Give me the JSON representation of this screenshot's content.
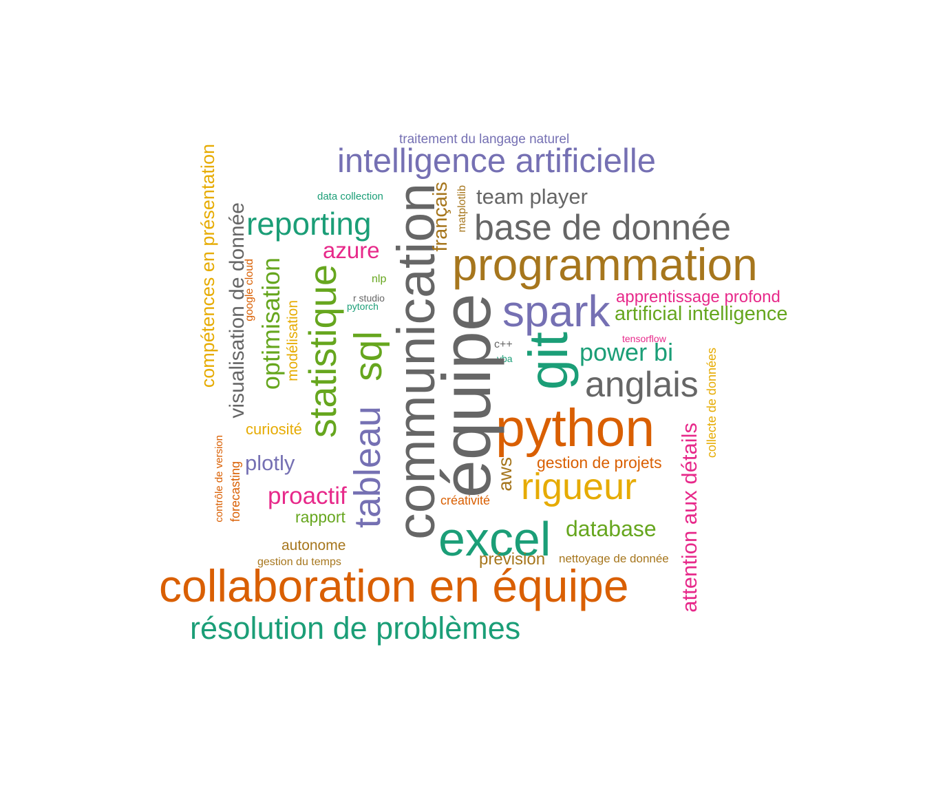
{
  "words": {
    "collaboration_en_equipe": "collaboration en équipe",
    "resolution_de_problemes": "résolution de problèmes",
    "programmation": "programmation",
    "python": "python",
    "communication": "communication",
    "equipe": "équipe",
    "excel": "excel",
    "intelligence_artificielle": "intelligence artificielle",
    "base_de_donnee": "base de donnée",
    "spark": "spark",
    "git": "git",
    "anglais": "anglais",
    "rigueur": "rigueur",
    "statistique": "statistique",
    "sql": "sql",
    "tableau": "tableau",
    "reporting": "reporting",
    "visualisation_de_donnee": "visualisation de donnée",
    "competences_en_presentation": "compétences en présentation",
    "optimisation": "optimisation",
    "attention_aux_details": "attention aux détails",
    "team_player": "team player",
    "power_bi": "power bi",
    "database": "database",
    "proactif": "proactif",
    "azure": "azure",
    "plotly": "plotly",
    "artificial_intelligence": "artificial intelligence",
    "apprentissage_profond": "apprentissage profond",
    "francais": "français",
    "aws": "aws",
    "gestion_de_projets": "gestion de projets",
    "prevision": "prévision",
    "rapport": "rapport",
    "autonome": "autonome",
    "curiosite": "curiosité",
    "modelisation": "modélisation",
    "traitement_du_langage_naturel": "traitement du langage naturel",
    "creativite": "créativité",
    "forecasting": "forecasting",
    "google_cloud": "google cloud",
    "nettoyage_de_donnee": "nettoyage de donnée",
    "collecte_de_donnees": "collecte de données",
    "gestion_du_temps": "gestion du temps",
    "controle_de_version": "contrôle de version",
    "data_collection": "data collection",
    "nlp": "nlp",
    "r_studio": "r studio",
    "pytorch": "pytorch",
    "tensorflow": "tensorflow",
    "cpp": "c++",
    "vba": "vba",
    "matplotlib": "matplotlib"
  },
  "palette": {
    "green": "#1b9e77",
    "orange": "#d95f02",
    "purple": "#7570b3",
    "pink": "#e7298a",
    "lime": "#66a61e",
    "yellow": "#e6ab02",
    "brown": "#a6761d",
    "gray": "#666666"
  }
}
